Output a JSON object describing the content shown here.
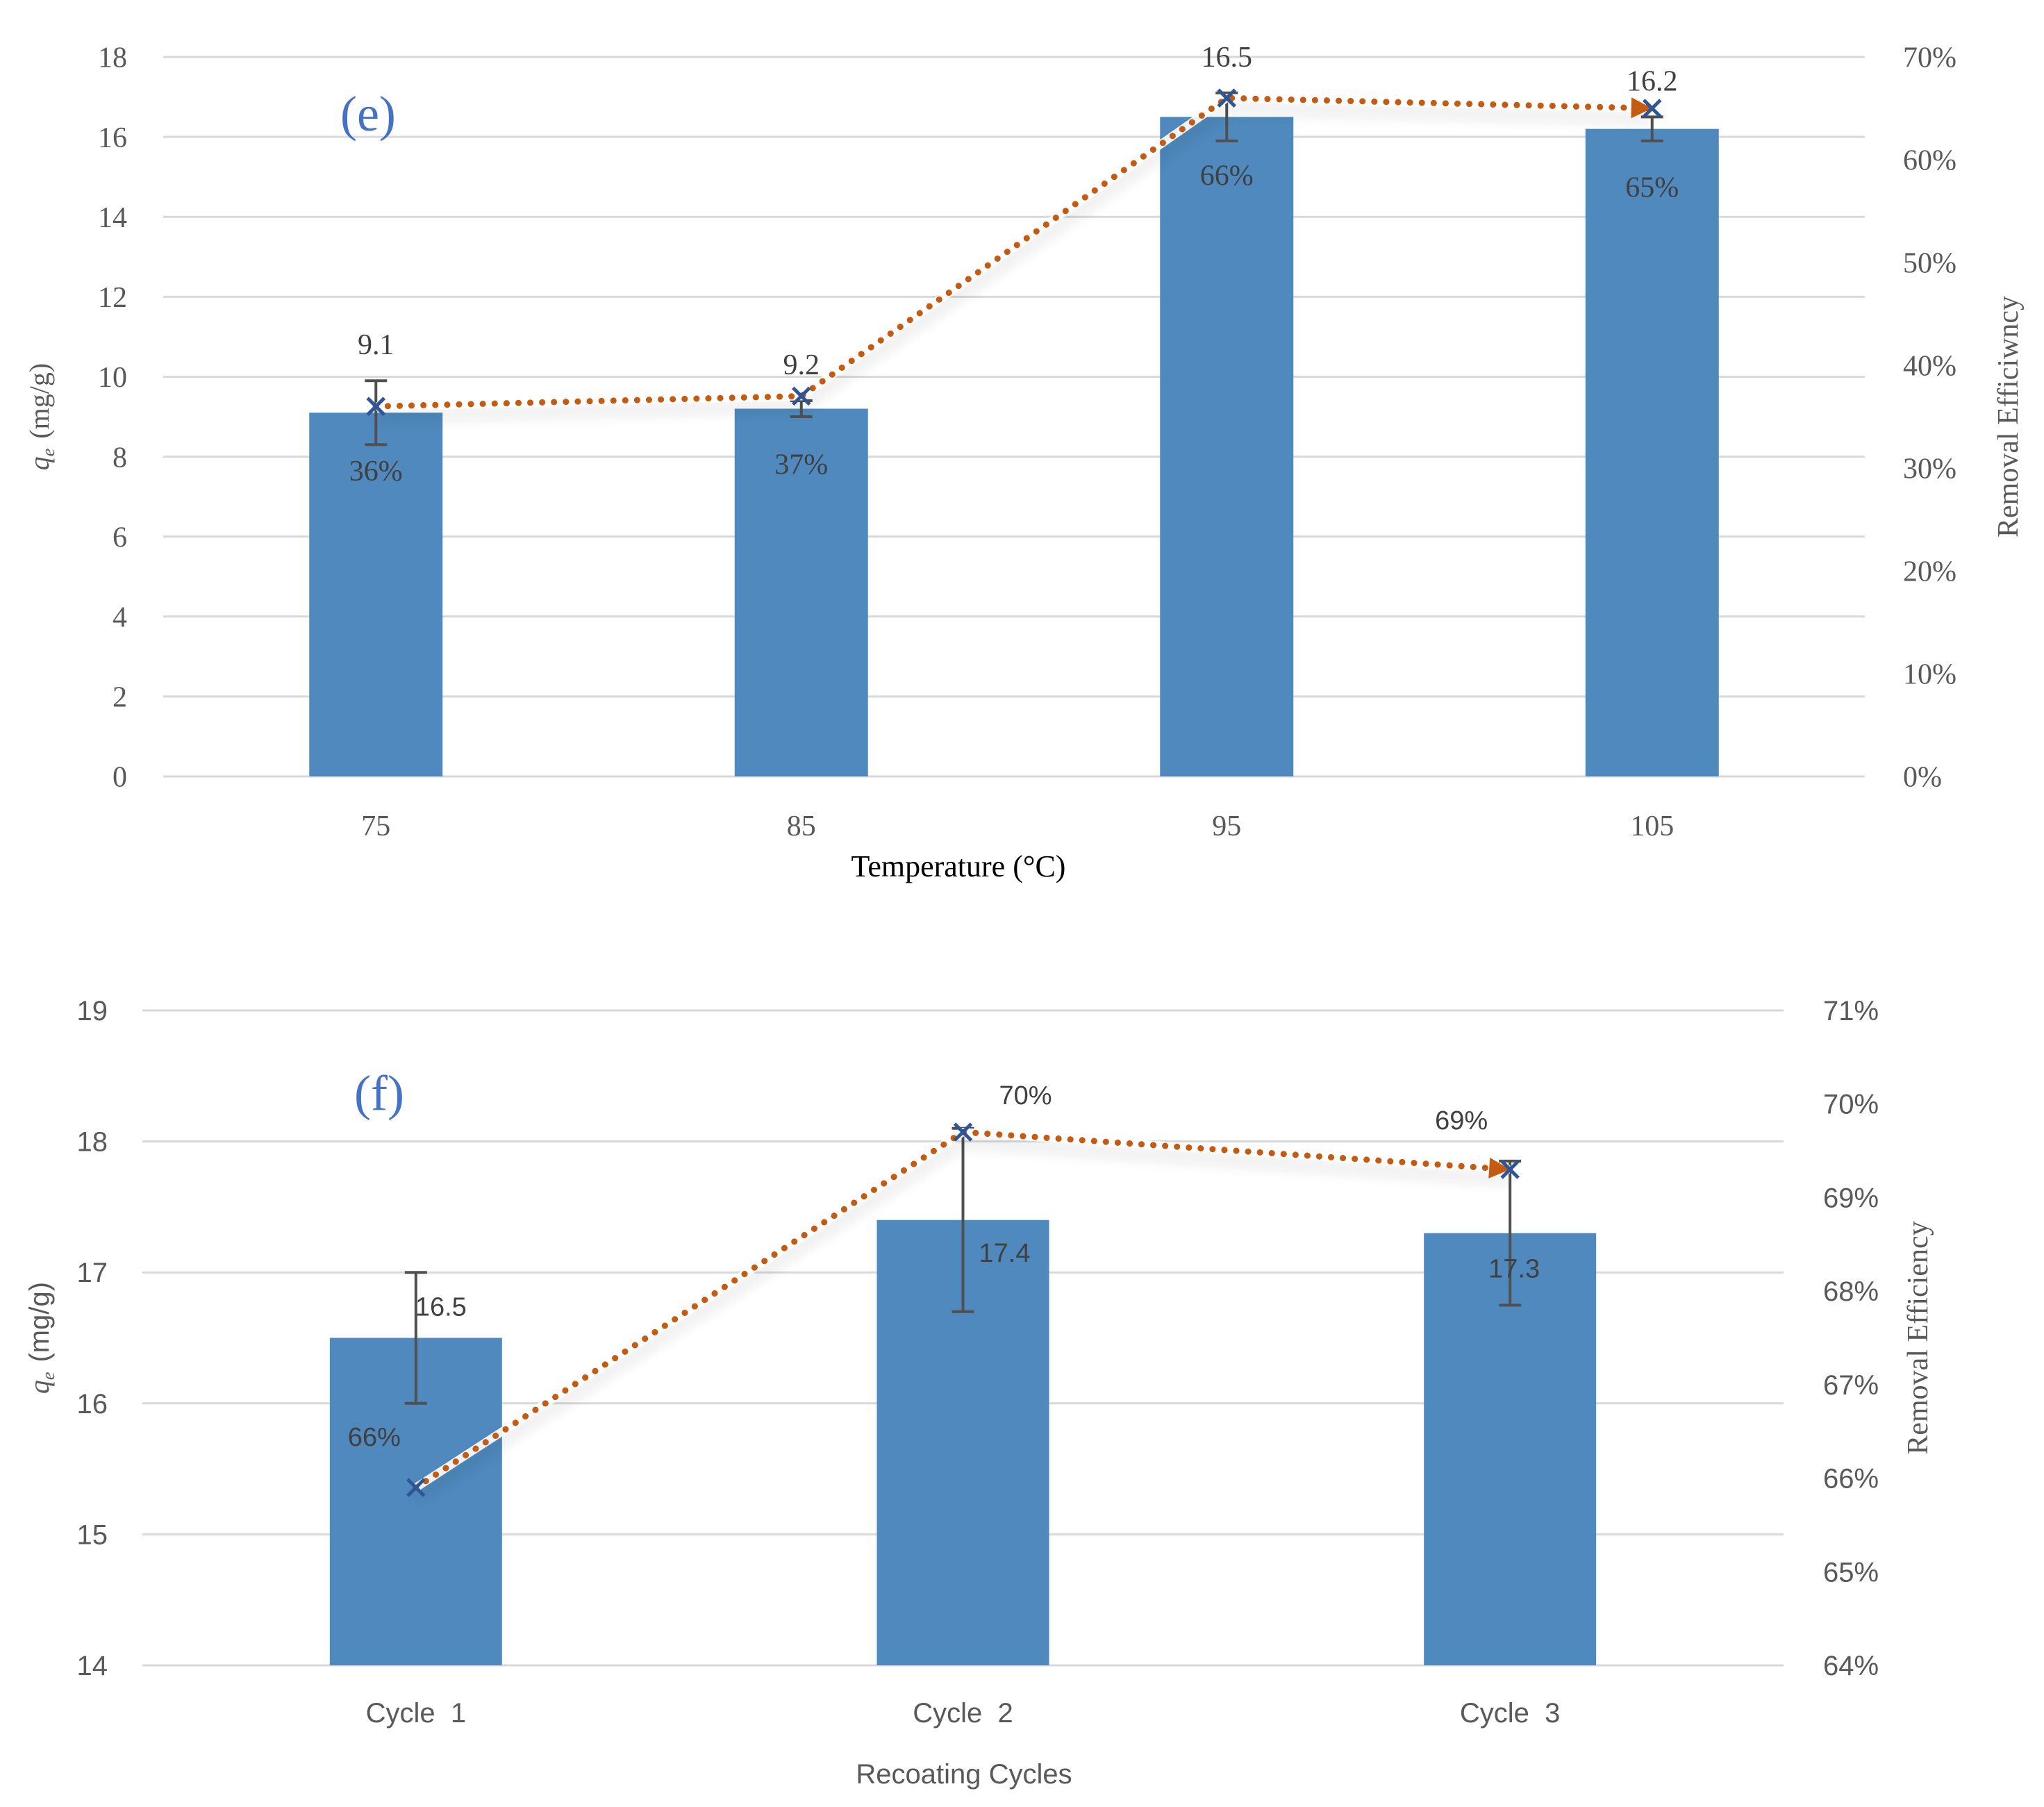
{
  "chart_data": [
    {
      "type": "bar",
      "panel_label": "(e)",
      "xlabel": "Temperature (°C)",
      "ylabel_q": "q",
      "ylabel_sub": "e",
      "ylabel_unit": "(mg/g)",
      "y2label": "Removal Efficiwncy",
      "categories": [
        "75",
        "85",
        "95",
        "105"
      ],
      "ylim": [
        0,
        18
      ],
      "yticks": [
        0,
        2,
        4,
        6,
        8,
        10,
        12,
        14,
        16,
        18
      ],
      "y2lim": [
        0,
        70
      ],
      "y2ticks": [
        "0%",
        "10%",
        "20%",
        "30%",
        "40%",
        "50%",
        "60%",
        "70%"
      ],
      "y2tick_values": [
        0,
        10,
        20,
        30,
        40,
        50,
        60,
        70
      ],
      "series": [
        {
          "name": "qe",
          "kind": "bar",
          "color": "#4f89bd",
          "values": [
            9.1,
            9.2,
            16.5,
            16.2
          ],
          "error": [
            0.8,
            0.2,
            0.6,
            0.3
          ],
          "labels": [
            "9.1",
            "9.2",
            "16.5",
            "16.2"
          ]
        },
        {
          "name": "Removal Efficiency",
          "kind": "line",
          "axis": "right",
          "color": "#c55a11",
          "marker_color": "#2f5597",
          "values": [
            36,
            37,
            66,
            65
          ],
          "labels": [
            "36%",
            "37%",
            "66%",
            "65%"
          ]
        }
      ]
    },
    {
      "type": "bar",
      "panel_label": "(f)",
      "xlabel": "Recoating Cycles",
      "ylabel_q": "q",
      "ylabel_sub": "e",
      "ylabel_unit": "(mg/g)",
      "y2label": "Removal Efficiency",
      "categories": [
        "Cycle  1",
        "Cycle  2",
        "Cycle  3"
      ],
      "ylim": [
        14,
        19
      ],
      "yticks": [
        14,
        15,
        16,
        17,
        18,
        19
      ],
      "y2lim": [
        64,
        71
      ],
      "y2ticks": [
        "64%",
        "65%",
        "66%",
        "67%",
        "68%",
        "69%",
        "70%",
        "71%"
      ],
      "y2tick_values": [
        64,
        65,
        66,
        67,
        68,
        69,
        70,
        71
      ],
      "series": [
        {
          "name": "qe",
          "kind": "bar",
          "color": "#4f89bd",
          "values": [
            16.5,
            17.4,
            17.3
          ],
          "error": [
            0.5,
            0.7,
            0.55
          ],
          "labels": [
            "16.5",
            "17.4",
            "17.3"
          ]
        },
        {
          "name": "Removal Efficiency",
          "kind": "line",
          "axis": "right",
          "color": "#c55a11",
          "marker_color": "#2f5597",
          "values": [
            65.9,
            69.7,
            69.3
          ],
          "labels": [
            "66%",
            "70%",
            "69%"
          ]
        }
      ]
    }
  ]
}
